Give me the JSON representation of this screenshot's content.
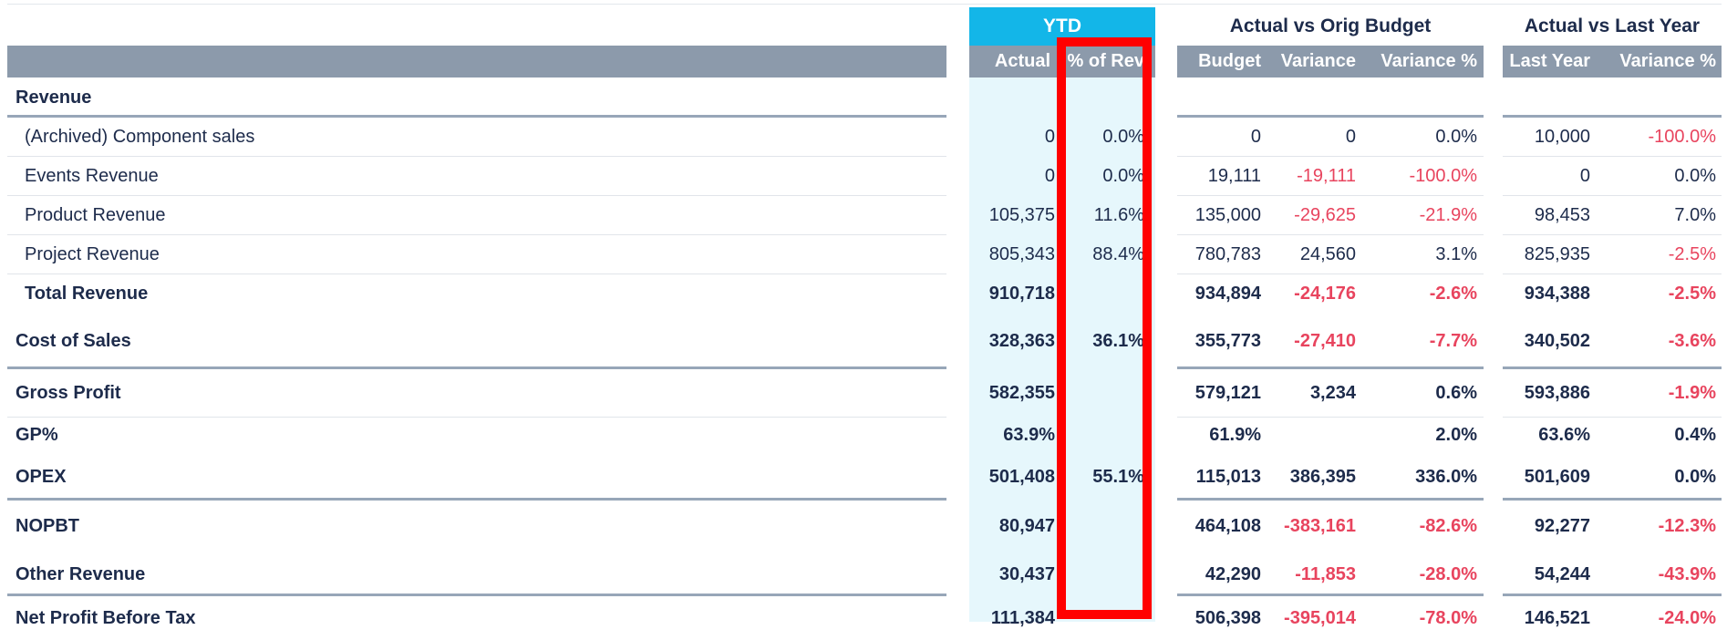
{
  "groups": {
    "ytd": "YTD",
    "budget": "Actual vs Orig Budget",
    "last_year": "Actual vs Last Year"
  },
  "columns": {
    "actual": "Actual",
    "pct_rev": "% of Rev",
    "budget": "Budget",
    "variance": "Variance",
    "variance_pct": "Variance %",
    "last_year": "Last Year",
    "ly_variance_pct": "Variance %"
  },
  "rows": [
    {
      "label": "Revenue",
      "indent": 0,
      "bold": true,
      "height": 44,
      "sep": "heavy",
      "values": [
        "",
        "",
        "",
        "",
        "",
        "",
        ""
      ]
    },
    {
      "label": "(Archived) Component sales",
      "indent": 1,
      "bold": false,
      "height": 43,
      "sep": "thin",
      "values": [
        "0",
        "0.0%",
        "0",
        "0",
        "0.0%",
        "10,000",
        "-100.0%"
      ]
    },
    {
      "label": "Events Revenue",
      "indent": 1,
      "bold": false,
      "height": 43,
      "sep": "thin",
      "values": [
        "0",
        "0.0%",
        "19,111",
        "-19,111",
        "-100.0%",
        "0",
        "0.0%"
      ]
    },
    {
      "label": "Product Revenue",
      "indent": 1,
      "bold": false,
      "height": 43,
      "sep": "thin",
      "values": [
        "105,375",
        "11.6%",
        "135,000",
        "-29,625",
        "-21.9%",
        "98,453",
        "7.0%"
      ]
    },
    {
      "label": "Project Revenue",
      "indent": 1,
      "bold": false,
      "height": 43,
      "sep": "thin",
      "values": [
        "805,343",
        "88.4%",
        "780,783",
        "24,560",
        "3.1%",
        "825,935",
        "-2.5%"
      ]
    },
    {
      "label": "Total Revenue",
      "indent": 1,
      "bold": true,
      "height": 43,
      "sep": "none",
      "values": [
        "910,718",
        "",
        "934,894",
        "-24,176",
        "-2.6%",
        "934,388",
        "-2.5%"
      ]
    },
    {
      "label": "Cost of Sales",
      "indent": 0,
      "bold": true,
      "height": 61,
      "sep": "heavy",
      "values": [
        "328,363",
        "36.1%",
        "355,773",
        "-27,410",
        "-7.7%",
        "340,502",
        "-3.6%"
      ]
    },
    {
      "label": "Gross Profit",
      "indent": 0,
      "bold": true,
      "height": 53,
      "sep": "thin",
      "values": [
        "582,355",
        "",
        "579,121",
        "3,234",
        "0.6%",
        "593,886",
        "-1.9%"
      ]
    },
    {
      "label": "GP%",
      "indent": 0,
      "bold": true,
      "height": 39,
      "sep": "none",
      "values": [
        "63.9%",
        "",
        "61.9%",
        "",
        "2.0%",
        "63.6%",
        "0.4%"
      ]
    },
    {
      "label": "OPEX",
      "indent": 0,
      "bold": true,
      "height": 52,
      "sep": "heavy",
      "values": [
        "501,408",
        "55.1%",
        "115,013",
        "386,395",
        "336.0%",
        "501,609",
        "0.0%"
      ]
    },
    {
      "label": "NOPBT",
      "indent": 0,
      "bold": true,
      "height": 57,
      "sep": "none",
      "values": [
        "80,947",
        "",
        "464,108",
        "-383,161",
        "-82.6%",
        "92,277",
        "-12.3%"
      ]
    },
    {
      "label": "Other Revenue",
      "indent": 0,
      "bold": true,
      "height": 48,
      "sep": "heavy",
      "values": [
        "30,437",
        "",
        "42,290",
        "-11,853",
        "-28.0%",
        "54,244",
        "-43.9%"
      ]
    },
    {
      "label": "Net Profit Before Tax",
      "indent": 0,
      "bold": true,
      "height": 48,
      "sep": "none",
      "values": [
        "111,384",
        "",
        "506,398",
        "-395,014",
        "-78.0%",
        "146,521",
        "-24.0%"
      ]
    }
  ],
  "colors": {
    "negative": "#e8445e",
    "header_band": "#8c9aab",
    "ytd_accent": "#13b6e8",
    "ytd_fill": "#e6f7fc",
    "highlight": "#ff0000"
  }
}
